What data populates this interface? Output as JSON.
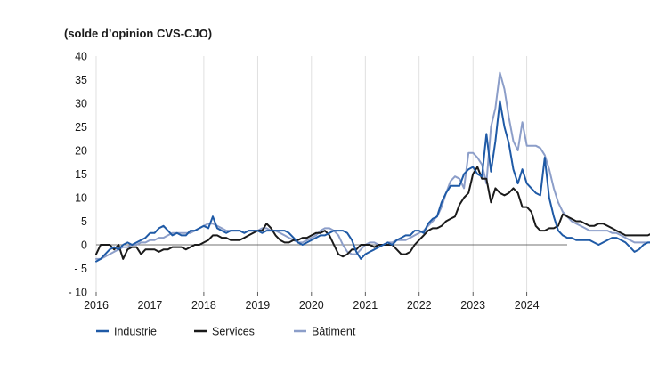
{
  "chart_data": {
    "type": "line",
    "title": "",
    "subtitle": "(solde d’opinion CVS-CJO)",
    "xlabel": "",
    "ylabel": "",
    "x_tick_labels": [
      "2016",
      "2017",
      "2018",
      "2019",
      "2020",
      "2021",
      "2022",
      "2023",
      "2024"
    ],
    "y_tick_labels": [
      "40",
      "35",
      "30",
      "25",
      "20",
      "15",
      "10",
      "5",
      "0",
      "- 5",
      "- 10"
    ],
    "ylim": [
      -10,
      40
    ],
    "xlim": [
      2016.0,
      2024.75
    ],
    "grid": "vertical",
    "legend_position": "bottom",
    "x_start": "2016-01",
    "x_step": "month",
    "series": [
      {
        "name": "Industrie",
        "color": "#1f5aa6",
        "values": [
          -3.5,
          -3,
          -2,
          -1,
          -0.5,
          -1,
          0,
          0.5,
          0,
          0.5,
          1,
          1.5,
          2.5,
          2.5,
          3.5,
          4,
          3,
          2,
          2.5,
          2,
          2,
          3,
          3,
          3.5,
          4,
          3.5,
          6,
          3.5,
          3,
          2.5,
          3,
          3,
          3,
          2.5,
          3,
          3,
          3,
          2.5,
          3,
          3,
          3,
          3,
          3,
          2.5,
          1.5,
          0.5,
          0,
          0.5,
          1,
          1.5,
          2,
          2,
          2.5,
          3,
          3,
          3,
          2.5,
          1,
          -1.5,
          -3,
          -2,
          -1.5,
          -1,
          -0.5,
          0,
          0.5,
          0,
          1,
          1.5,
          2,
          2,
          3,
          3,
          2.5,
          4.5,
          5.5,
          6,
          9,
          11,
          12.5,
          12.5,
          12.5,
          15,
          16,
          16.5,
          15,
          14.5,
          23.5,
          15.5,
          22,
          30.5,
          25,
          21.5,
          16,
          13,
          16,
          13,
          12,
          11,
          10.5,
          18.5,
          10,
          6,
          3,
          2,
          1.5,
          1.5,
          1,
          1,
          1,
          1,
          0.5,
          0,
          0.5,
          1,
          1.5,
          1.5,
          1,
          0.5,
          -0.5,
          -1.5,
          -1,
          0,
          0.5,
          0.5,
          1,
          2,
          1.5,
          1,
          0.8,
          0.8
        ]
      },
      {
        "name": "Services",
        "color": "#1a1a1a",
        "values": [
          -2,
          0,
          0,
          0,
          -1,
          0,
          -3,
          -1,
          -0.5,
          -0.5,
          -2,
          -1,
          -1,
          -1,
          -1.5,
          -1,
          -1,
          -0.5,
          -0.5,
          -0.5,
          -1,
          -0.5,
          0,
          0,
          0.5,
          1,
          2,
          2,
          1.5,
          1.5,
          1,
          1,
          1,
          1.5,
          2,
          2.5,
          3,
          3,
          4.5,
          3.5,
          2,
          1,
          0.5,
          0.5,
          1,
          1,
          1.5,
          1.5,
          2,
          2.5,
          2.5,
          3,
          2,
          0,
          -2,
          -2.5,
          -2,
          -1,
          -1,
          0,
          0,
          0,
          -0.5,
          0,
          0,
          0,
          0,
          -1,
          -2,
          -2,
          -1.5,
          0,
          1,
          2,
          3,
          3.5,
          3.5,
          4,
          5,
          5.5,
          6,
          8.5,
          10,
          11,
          15,
          16.5,
          14,
          14,
          9,
          12,
          11,
          10.5,
          11,
          12,
          11,
          8,
          8,
          7,
          4,
          3,
          3,
          3.5,
          3.5,
          4,
          6.5,
          6,
          5.5,
          5,
          5,
          4.5,
          4,
          4,
          4.5,
          4.5,
          4,
          3.5,
          3,
          2.5,
          2,
          2,
          2,
          2,
          2,
          2,
          2.5,
          3,
          2,
          1,
          1
        ]
      },
      {
        "name": "Bâtiment",
        "color": "#8c9ec9",
        "values": [
          -3,
          -3,
          -2.5,
          -2,
          -1.5,
          -1,
          -0.5,
          -0.5,
          0,
          0,
          0.5,
          0.5,
          1,
          1,
          1.5,
          1.5,
          2,
          2.5,
          2.5,
          2.5,
          2.5,
          2.5,
          3,
          3.5,
          4,
          4.5,
          4.5,
          4,
          3.5,
          3,
          3,
          3,
          3,
          2.5,
          3,
          3,
          3,
          3.5,
          3.5,
          3,
          3,
          2.5,
          2,
          1.5,
          1,
          0.5,
          0.5,
          1,
          1.5,
          2,
          3,
          3.5,
          3.5,
          3,
          2,
          0,
          -1.5,
          -2,
          -2,
          -1,
          0,
          0.5,
          0.5,
          0,
          0,
          0.5,
          0.5,
          1,
          1,
          1,
          1.5,
          2,
          2.5,
          3,
          4,
          5,
          6,
          8,
          11,
          13.5,
          14.5,
          14,
          12,
          19.5,
          19.5,
          18.5,
          17,
          13,
          25,
          29,
          36.5,
          33,
          27,
          22,
          20,
          26,
          21,
          21,
          21,
          20.5,
          19,
          16,
          12,
          9,
          7,
          6,
          5,
          4.5,
          4,
          3.5,
          3,
          3,
          3,
          3,
          3,
          2.5,
          2.5,
          2,
          1.5,
          1,
          0.5,
          0.5,
          0.5,
          0.5,
          0.5,
          0.5,
          0.5,
          0.5,
          0.5,
          0,
          -0.5
        ]
      }
    ]
  }
}
